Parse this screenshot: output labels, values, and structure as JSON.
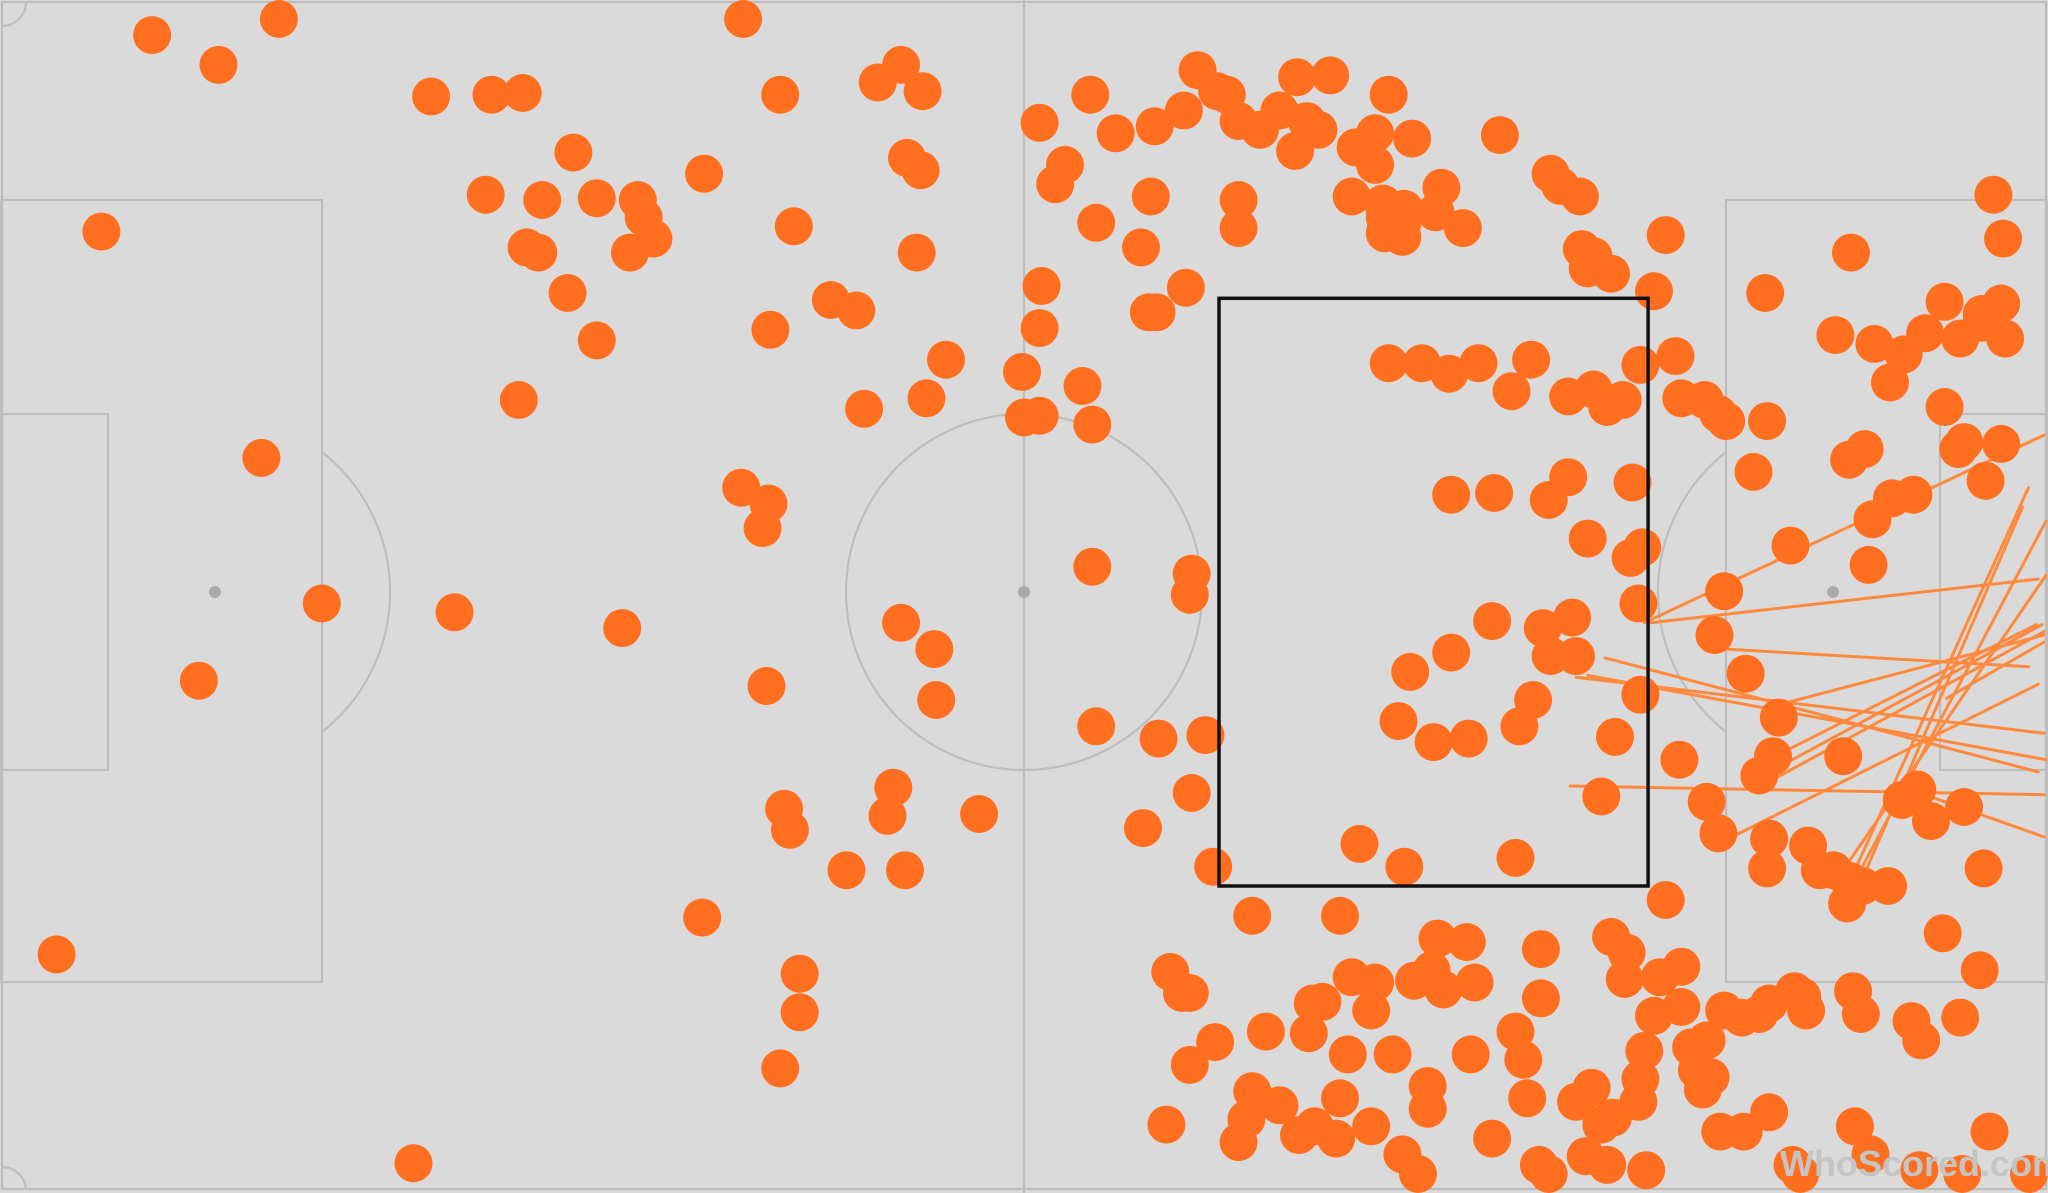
{
  "watermark": "WhoScored.com",
  "colors": {
    "pitch": "#dadada",
    "lines": "#bdbdbd",
    "marker": "#ff6f1f",
    "pass": "#ff8a3d",
    "zone": "#111111"
  },
  "chart_data": {
    "type": "scatter",
    "subtype": "football-pitch-touch-map",
    "pitch_length": 105,
    "pitch_width": 68,
    "grid": false,
    "legend": "none",
    "highlight_zone": {
      "x": [
        62.5,
        84.5
      ],
      "y": [
        17.5,
        51.0
      ]
    },
    "points": [
      [
        7.8,
        66
      ],
      [
        11.2,
        64.3
      ],
      [
        14.3,
        67
      ],
      [
        22.1,
        62.5
      ],
      [
        25.2,
        62.6
      ],
      [
        26.8,
        62.7
      ],
      [
        38.1,
        67
      ],
      [
        40,
        62.6
      ],
      [
        45,
        63.3
      ],
      [
        46.2,
        64.3
      ],
      [
        47.3,
        62.8
      ],
      [
        46.5,
        59
      ],
      [
        47.2,
        58.3
      ],
      [
        29.4,
        59.3
      ],
      [
        24.9,
        56.9
      ],
      [
        27.8,
        56.6
      ],
      [
        30.6,
        56.7
      ],
      [
        32.7,
        56.6
      ],
      [
        33,
        55.6
      ],
      [
        36.1,
        58.1
      ],
      [
        40.7,
        55.1
      ],
      [
        47,
        53.6
      ],
      [
        5.2,
        54.8
      ],
      [
        27,
        53.9
      ],
      [
        27.6,
        53.6
      ],
      [
        32.3,
        53.6
      ],
      [
        33.5,
        54.4
      ],
      [
        29.1,
        51.3
      ],
      [
        42.6,
        50.9
      ],
      [
        43.9,
        50.3
      ],
      [
        39.5,
        49.2
      ],
      [
        30.6,
        48.6
      ],
      [
        48.5,
        47.5
      ],
      [
        26.6,
        45.2
      ],
      [
        44.3,
        44.7
      ],
      [
        47.5,
        45.3
      ],
      [
        13.4,
        41.9
      ],
      [
        38,
        40.2
      ],
      [
        39.4,
        39.3
      ],
      [
        39.1,
        37.9
      ],
      [
        16.5,
        33.6
      ],
      [
        23.3,
        33.1
      ],
      [
        31.9,
        32.2
      ],
      [
        46.2,
        32.5
      ],
      [
        47.9,
        31
      ],
      [
        10.2,
        29.2
      ],
      [
        39.3,
        28.9
      ],
      [
        40.2,
        21.9
      ],
      [
        40.5,
        20.7
      ],
      [
        43.4,
        18.4
      ],
      [
        46.4,
        18.4
      ],
      [
        36,
        15.7
      ],
      [
        2.9,
        13.6
      ],
      [
        41,
        12.5
      ],
      [
        41,
        10.3
      ],
      [
        40,
        7.1
      ],
      [
        21.2,
        1.7
      ],
      [
        53.3,
        44.3
      ],
      [
        52.5,
        44.2
      ],
      [
        56,
        43.8
      ],
      [
        55.5,
        46
      ],
      [
        52.4,
        46.8
      ],
      [
        53.3,
        49.3
      ],
      [
        53.4,
        51.7
      ],
      [
        58.9,
        50.2
      ],
      [
        59,
        56.8
      ],
      [
        63.5,
        56.6
      ],
      [
        63.5,
        55
      ],
      [
        58.5,
        53.9
      ],
      [
        59.3,
        50.2
      ],
      [
        60.8,
        51.6
      ],
      [
        56.2,
        55.3
      ],
      [
        59.2,
        60.8
      ],
      [
        55.9,
        62.6
      ],
      [
        57.2,
        60.4
      ],
      [
        53.3,
        61
      ],
      [
        54.1,
        57.5
      ],
      [
        54.6,
        58.6
      ],
      [
        60.7,
        61.7
      ],
      [
        61.4,
        64
      ],
      [
        62.4,
        62.8
      ],
      [
        62.9,
        62.6
      ],
      [
        63.5,
        61.1
      ],
      [
        64.6,
        60.6
      ],
      [
        66.4,
        59.4
      ],
      [
        65.6,
        61.7
      ],
      [
        67,
        61.1
      ],
      [
        67.6,
        60.6
      ],
      [
        66.5,
        63.6
      ],
      [
        68.2,
        63.7
      ],
      [
        69.5,
        59.6
      ],
      [
        70.5,
        60.4
      ],
      [
        72.4,
        60.1
      ],
      [
        71.2,
        62.6
      ],
      [
        69.3,
        56.8
      ],
      [
        70.9,
        56.4
      ],
      [
        72,
        56.1
      ],
      [
        71.9,
        55.3
      ],
      [
        73.9,
        57.3
      ],
      [
        73.6,
        55.9
      ],
      [
        71,
        55.6
      ],
      [
        71,
        54.7
      ],
      [
        71.9,
        54.5
      ],
      [
        75,
        55
      ],
      [
        70.5,
        58.6
      ],
      [
        76.9,
        60.3
      ],
      [
        79.5,
        58.1
      ],
      [
        80,
        57.4
      ],
      [
        81,
        56.8
      ],
      [
        81.4,
        52.7
      ],
      [
        81.7,
        53.4
      ],
      [
        81.1,
        53.8
      ],
      [
        82.6,
        52.4
      ],
      [
        84.8,
        51.4
      ],
      [
        85.4,
        54.6
      ],
      [
        71.2,
        47.3
      ],
      [
        72.9,
        47.3
      ],
      [
        74.3,
        46.7
      ],
      [
        75.8,
        47.3
      ],
      [
        77.5,
        45.7
      ],
      [
        78.5,
        47.5
      ],
      [
        80.4,
        45.4
      ],
      [
        81.7,
        45.8
      ],
      [
        82.4,
        44.8
      ],
      [
        83.2,
        45.2
      ],
      [
        84.1,
        47.2
      ],
      [
        85.9,
        47.7
      ],
      [
        87.4,
        45.2
      ],
      [
        88.1,
        44.4
      ],
      [
        90.6,
        44
      ],
      [
        81.4,
        37.3
      ],
      [
        83.6,
        36.2
      ],
      [
        84.2,
        36.8
      ],
      [
        84,
        33.6
      ],
      [
        74.4,
        39.8
      ],
      [
        76.6,
        39.9
      ],
      [
        79.4,
        39.5
      ],
      [
        80.4,
        40.8
      ],
      [
        83.7,
        40.5
      ],
      [
        56,
        35.7
      ],
      [
        61,
        34.1
      ],
      [
        61.1,
        35.3
      ],
      [
        76.5,
        32.6
      ],
      [
        79.1,
        32.2
      ],
      [
        80.6,
        32.8
      ],
      [
        87.9,
        31.8
      ],
      [
        89.9,
        41.1
      ],
      [
        88.5,
        44
      ],
      [
        86.2,
        45.3
      ],
      [
        91.8,
        36.9
      ],
      [
        94.8,
        41.8
      ],
      [
        95.6,
        42.4
      ],
      [
        100.4,
        42.4
      ],
      [
        100.7,
        42.8
      ],
      [
        101.8,
        40.6
      ],
      [
        96,
        38.4
      ],
      [
        97,
        39.6
      ],
      [
        98.1,
        39.8
      ],
      [
        95.8,
        35.8
      ],
      [
        102.6,
        42.7
      ],
      [
        96.1,
        48.4
      ],
      [
        97.6,
        47.8
      ],
      [
        96.9,
        46.2
      ],
      [
        99.7,
        44.8
      ],
      [
        101.6,
        49.6
      ],
      [
        98.7,
        49
      ],
      [
        100.5,
        48.7
      ],
      [
        99.7,
        50.8
      ],
      [
        101.6,
        50.1
      ],
      [
        102.6,
        50.7
      ],
      [
        102.8,
        48.7
      ],
      [
        102.7,
        54.4
      ],
      [
        102.2,
        56.9
      ],
      [
        90.5,
        51.3
      ],
      [
        94.1,
        48.9
      ],
      [
        94.9,
        53.6
      ],
      [
        88.4,
        34.3
      ],
      [
        79.5,
        30.6
      ],
      [
        74.4,
        30.8
      ],
      [
        75.3,
        25.9
      ],
      [
        78.6,
        28.1
      ],
      [
        77.9,
        26.6
      ],
      [
        72.3,
        29.7
      ],
      [
        71.7,
        26.9
      ],
      [
        73.5,
        25.7
      ],
      [
        82.1,
        22.6
      ],
      [
        88.1,
        20.5
      ],
      [
        85.4,
        16.7
      ],
      [
        80.8,
        30.6
      ],
      [
        84.1,
        28.4
      ],
      [
        82.8,
        26
      ],
      [
        86.1,
        24.7
      ],
      [
        89.5,
        29.6
      ],
      [
        87.5,
        22.3
      ],
      [
        90.2,
        23.8
      ],
      [
        90.9,
        24.9
      ],
      [
        91.2,
        27.1
      ],
      [
        94.5,
        24.9
      ],
      [
        97.5,
        22.4
      ],
      [
        98.3,
        23
      ],
      [
        100.7,
        22
      ],
      [
        99,
        21.2
      ],
      [
        101.7,
        18.5
      ],
      [
        94,
        18.4
      ],
      [
        92.7,
        19.8
      ],
      [
        90.7,
        20.2
      ],
      [
        90.6,
        18.5
      ],
      [
        93.3,
        18.4
      ],
      [
        94.8,
        17.8
      ],
      [
        95.5,
        17.5
      ],
      [
        94.7,
        16.5
      ],
      [
        96.8,
        17.5
      ],
      [
        99.6,
        14.8
      ],
      [
        101.5,
        12.7
      ],
      [
        100.5,
        10
      ],
      [
        92.4,
        11.2
      ],
      [
        95,
        11.5
      ],
      [
        95.4,
        10.2
      ],
      [
        98,
        9.8
      ],
      [
        98.5,
        8.7
      ],
      [
        82.6,
        14.6
      ],
      [
        83.4,
        13.7
      ],
      [
        86.2,
        12.9
      ],
      [
        85.1,
        12.3
      ],
      [
        84.8,
        10.1
      ],
      [
        86.2,
        10.6
      ],
      [
        88.4,
        10.4
      ],
      [
        89.3,
        10
      ],
      [
        90.2,
        10.2
      ],
      [
        90.7,
        10.8
      ],
      [
        92,
        11.5
      ],
      [
        92.6,
        10.4
      ],
      [
        87.5,
        8.7
      ],
      [
        86.7,
        8.3
      ],
      [
        87.7,
        6.6
      ],
      [
        87.3,
        5.9
      ],
      [
        88.2,
        3.5
      ],
      [
        87,
        7
      ],
      [
        84.3,
        8.1
      ],
      [
        84.1,
        6.5
      ],
      [
        84,
        5.2
      ],
      [
        81.6,
        6
      ],
      [
        80.8,
        5.2
      ],
      [
        82.1,
        3.9
      ],
      [
        82.7,
        4.3
      ],
      [
        81.3,
        2.1
      ],
      [
        78.9,
        1.6
      ],
      [
        82.4,
        1.6
      ],
      [
        84.4,
        1.3
      ],
      [
        89.4,
        3.5
      ],
      [
        90.7,
        4.6
      ],
      [
        95.1,
        3.8
      ],
      [
        95.9,
        2.2
      ],
      [
        91.9,
        1.6
      ],
      [
        92.3,
        0.2
      ],
      [
        98.4,
        1.3
      ],
      [
        102,
        3.5
      ],
      [
        100.6,
        0.4
      ],
      [
        104.2,
        0.4
      ],
      [
        83.3,
        12.2
      ],
      [
        79,
        13.9
      ],
      [
        79,
        11.1
      ],
      [
        77.7,
        9.2
      ],
      [
        78.1,
        7.6
      ],
      [
        78.3,
        5.4
      ],
      [
        76.5,
        3.1
      ],
      [
        75.4,
        7.9
      ],
      [
        73.2,
        6.1
      ],
      [
        73.2,
        4.8
      ],
      [
        71.4,
        7.9
      ],
      [
        70.5,
        12
      ],
      [
        70.3,
        10.4
      ],
      [
        67.3,
        10.8
      ],
      [
        67.8,
        10.9
      ],
      [
        67.1,
        9.1
      ],
      [
        69.3,
        12.3
      ],
      [
        69.1,
        7.9
      ],
      [
        72.5,
        12.1
      ],
      [
        73.4,
        12.7
      ],
      [
        74,
        11.6
      ],
      [
        75.6,
        12
      ],
      [
        71.9,
        2.2
      ],
      [
        68.7,
        5.4
      ],
      [
        68.5,
        3.1
      ],
      [
        67.4,
        3.8
      ],
      [
        66.6,
        3.3
      ],
      [
        65.6,
        5
      ],
      [
        64.2,
        5.8
      ],
      [
        64.9,
        9.2
      ],
      [
        62.3,
        8.6
      ],
      [
        61,
        7.3
      ],
      [
        61,
        11.4
      ],
      [
        60.6,
        11.4
      ],
      [
        60,
        12.6
      ],
      [
        59.8,
        3.9
      ],
      [
        63.9,
        4.2
      ],
      [
        63.5,
        2.9
      ],
      [
        70.3,
        3.8
      ],
      [
        72.7,
        0.4
      ],
      [
        79.4,
        0.4
      ],
      [
        69.7,
        19.9
      ],
      [
        72,
        18.6
      ],
      [
        73.7,
        14.5
      ],
      [
        75.2,
        14.3
      ],
      [
        77.7,
        19.1
      ],
      [
        64.2,
        15.8
      ],
      [
        68.7,
        15.8
      ],
      [
        62.2,
        18.6
      ],
      [
        61.1,
        22.8
      ],
      [
        58.6,
        20.8
      ],
      [
        59.4,
        25.9
      ],
      [
        61.8,
        26.1
      ],
      [
        56.2,
        26.6
      ],
      [
        48,
        28.1
      ],
      [
        50.2,
        21.6
      ],
      [
        45.5,
        21.5
      ],
      [
        45.8,
        23.1
      ]
    ],
    "passes": [
      [
        84.3,
        32.5,
        104.8,
        43.2
      ],
      [
        84.6,
        32.5,
        104.5,
        35
      ],
      [
        80.8,
        29.4,
        104.8,
        26.2
      ],
      [
        81.4,
        29.5,
        104.9,
        24.7
      ],
      [
        82.3,
        30.5,
        104.5,
        24
      ],
      [
        88.5,
        31,
        104,
        30
      ],
      [
        91,
        24.9,
        104.4,
        32.4
      ],
      [
        90.3,
        23.2,
        104.8,
        32
      ],
      [
        94.8,
        18.9,
        104.9,
        35.2
      ],
      [
        95.1,
        17.8,
        104.9,
        38.3
      ],
      [
        94.4,
        16.7,
        104,
        40.2
      ],
      [
        94.9,
        16.4,
        103.7,
        39.1
      ],
      [
        80.5,
        23.2,
        104.8,
        22.7
      ],
      [
        88.8,
        20.3,
        104.5,
        29
      ],
      [
        90.4,
        27.6,
        104.8,
        31.8
      ],
      [
        90.9,
        24.1,
        104.7,
        32.4
      ],
      [
        99.2,
        22.5,
        104.8,
        20.3
      ],
      [
        99.8,
        28.2,
        104.8,
        31.4
      ]
    ]
  }
}
